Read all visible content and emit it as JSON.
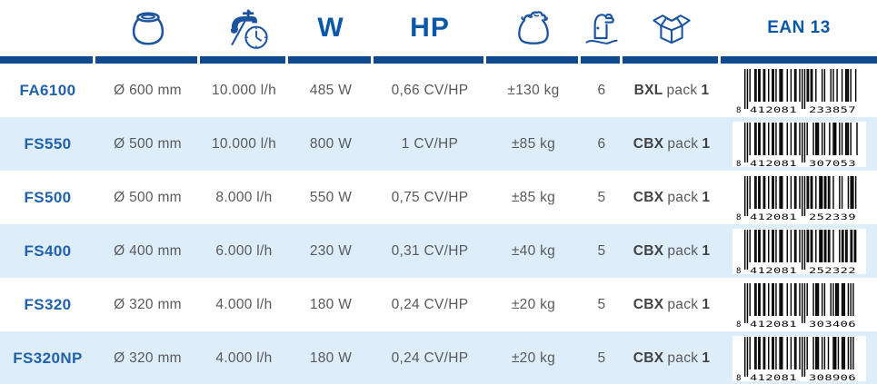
{
  "header": {
    "watts_label": "W",
    "hp_label": "HP",
    "ean_label": "EAN 13",
    "icon_names": {
      "diameter": "pot-icon",
      "flow": "faucet-clock-icon",
      "weight": "bag-icon",
      "pump": "sand-filter-pump-icon",
      "pack": "box-icon"
    }
  },
  "rows": [
    {
      "product": "FA6100",
      "diameter": "Ø 600 mm",
      "flow": "10.000 l/h",
      "watts": "485 W",
      "hp": "0,66 CV/HP",
      "weight": "±130 kg",
      "qty": "6",
      "pack_code": "BXL",
      "pack_word": "pack",
      "pack_num": "1",
      "ean": "8412081233857"
    },
    {
      "product": "FS550",
      "diameter": "Ø 500 mm",
      "flow": "10.000 l/h",
      "watts": "800 W",
      "hp": "1 CV/HP",
      "weight": "±85 kg",
      "qty": "6",
      "pack_code": "CBX",
      "pack_word": "pack",
      "pack_num": "1",
      "ean": "8412081307053"
    },
    {
      "product": "FS500",
      "diameter": "Ø 500 mm",
      "flow": "8.000 l/h",
      "watts": "550 W",
      "hp": "0,75 CV/HP",
      "weight": "±85 kg",
      "qty": "5",
      "pack_code": "CBX",
      "pack_word": "pack",
      "pack_num": "1",
      "ean": "8412081252339"
    },
    {
      "product": "FS400",
      "diameter": "Ø 400 mm",
      "flow": "6.000 l/h",
      "watts": "230 W",
      "hp": "0,31 CV/HP",
      "weight": "±40 kg",
      "qty": "5",
      "pack_code": "CBX",
      "pack_word": "pack",
      "pack_num": "1",
      "ean": "8412081252322"
    },
    {
      "product": "FS320",
      "diameter": "Ø 320 mm",
      "flow": "4.000 l/h",
      "watts": "180 W",
      "hp": "0,24 CV/HP",
      "weight": "±20 kg",
      "qty": "5",
      "pack_code": "CBX",
      "pack_word": "pack",
      "pack_num": "1",
      "ean": "8412081303406"
    },
    {
      "product": "FS320NP",
      "diameter": "Ø 320 mm",
      "flow": "4.000 l/h",
      "watts": "180 W",
      "hp": "0,24 CV/HP",
      "weight": "±20 kg",
      "qty": "5",
      "pack_code": "CBX",
      "pack_word": "pack",
      "pack_num": "1",
      "ean": "8412081308906"
    }
  ],
  "colors": {
    "navy_bar": "#10498e",
    "icon_blue": "#1b53a0",
    "header_text": "#0c58a8",
    "product_text": "#2161ad",
    "data_text": "#58595c",
    "row_alt_bg": "#ddeefa",
    "barcode_bar": "#000000"
  }
}
